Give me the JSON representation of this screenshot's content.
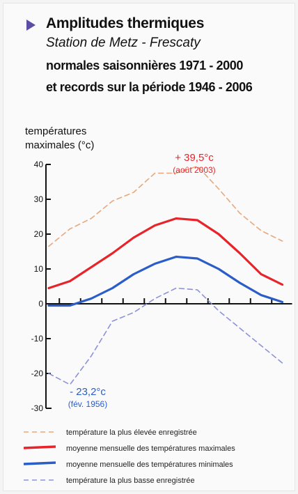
{
  "header": {
    "title": "Amplitudes thermiques",
    "subtitle": "Station de Metz - Frescaty",
    "line3": "normales saisonnières 1971 - 2000",
    "line4": "et records sur la période 1946 - 2006"
  },
  "colors": {
    "accent_triangle": "#5a4da3",
    "max_record": "#e8a87c",
    "max_mean": "#e8242b",
    "min_mean": "#2a5dc8",
    "min_record": "#8c92d8",
    "annotation_hot": "#e8242b",
    "annotation_cold": "#2a5dc8"
  },
  "chart_data": {
    "type": "line",
    "ylabel": "températures\nmaximales (°c)",
    "ylim": [
      -30,
      40
    ],
    "yticks": [
      -30,
      -20,
      -10,
      0,
      10,
      20,
      30,
      40
    ],
    "ytick_labels": [
      "-30",
      "-20",
      "-10",
      "0",
      "10",
      "20",
      "30",
      "40"
    ],
    "months": 12,
    "series": [
      {
        "name": "température la plus élevée enregistrée",
        "style": "dashed",
        "values": [
          16.5,
          21.5,
          24.5,
          29.5,
          32,
          37.5,
          37.5,
          39.5,
          33,
          26,
          21,
          18
        ]
      },
      {
        "name": "moyenne mensuelle des températures maximales",
        "style": "solid",
        "values": [
          4.5,
          6.5,
          10.5,
          14.5,
          19,
          22.5,
          24.5,
          24,
          20,
          14.5,
          8.5,
          5.5
        ]
      },
      {
        "name": "moyenne mensuelle des températures minimales",
        "style": "solid",
        "values": [
          -0.5,
          -0.5,
          1.5,
          4.5,
          8.5,
          11.5,
          13.5,
          13,
          10,
          6,
          2.5,
          0.5
        ]
      },
      {
        "name": "température la plus basse enregistrée",
        "style": "dashed",
        "values": [
          -20,
          -23.2,
          -15,
          -5,
          -2.5,
          1.5,
          4.5,
          4,
          -2,
          -7,
          -12,
          -17
        ]
      }
    ],
    "annotations": [
      {
        "line1": "+ 39,5°c",
        "line2": "(août 2003)"
      },
      {
        "line1": "- 23,2°c",
        "line2": "(fév. 1956)"
      }
    ]
  }
}
